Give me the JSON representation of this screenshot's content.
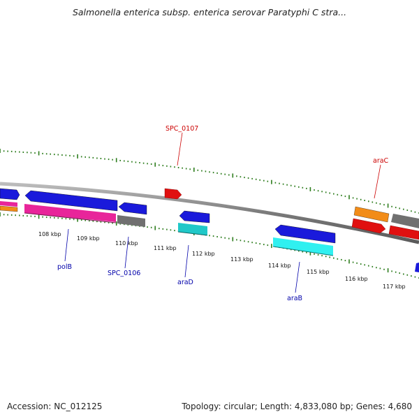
{
  "header": {
    "title": "Salmonella enterica subsp. enterica serovar Paratyphi C stra..."
  },
  "footer": {
    "accession": "Accession: NC_012125",
    "summary": "Topology: circular; Length: 4,833,080 bp; Genes: 4,680"
  },
  "colors": {
    "backbone": "#8c8c8c",
    "tick_major": "#2e7d1e",
    "tick_minor": "#2e7d1e",
    "label_blue": "#0000aa",
    "label_red": "#cc0000"
  },
  "ticks": [
    {
      "label": "108 kbp"
    },
    {
      "label": "109 kbp"
    },
    {
      "label": "110 kbp"
    },
    {
      "label": "111 kbp"
    },
    {
      "label": "112 kbp"
    },
    {
      "label": "113 kbp"
    },
    {
      "label": "114 kbp"
    },
    {
      "label": "115 kbp"
    },
    {
      "label": "116 kbp"
    },
    {
      "label": "117 kbp"
    }
  ],
  "gene_labels": [
    {
      "name": "SPC_0107",
      "color": "#cc0000"
    },
    {
      "name": "araC",
      "color": "#cc0000"
    },
    {
      "name": "polB",
      "color": "#0000aa"
    },
    {
      "name": "SPC_0106",
      "color": "#0000aa"
    },
    {
      "name": "araD",
      "color": "#0000aa"
    },
    {
      "name": "araB",
      "color": "#0000aa"
    }
  ],
  "features": [
    {
      "name": "left-blue-edge",
      "color": "#1a1adb"
    },
    {
      "name": "left-pink-edge",
      "color": "#e8259a"
    },
    {
      "name": "left-orange-edge",
      "color": "#f28c18"
    },
    {
      "name": "polB",
      "color": "#1a1adb"
    },
    {
      "name": "polB-pink",
      "color": "#e8259a"
    },
    {
      "name": "SPC_0106",
      "color": "#1a1adb"
    },
    {
      "name": "SPC_0106-gray",
      "color": "#707070"
    },
    {
      "name": "SPC_0107",
      "color": "#e01010"
    },
    {
      "name": "araD",
      "color": "#1a1adb"
    },
    {
      "name": "araD-cyan",
      "color": "#20c8c8"
    },
    {
      "name": "araB",
      "color": "#1a1adb"
    },
    {
      "name": "araB-cyan",
      "color": "#30f0f0"
    },
    {
      "name": "araC",
      "color": "#f28c18"
    },
    {
      "name": "araC-red",
      "color": "#e01010"
    },
    {
      "name": "right-gray",
      "color": "#707070"
    },
    {
      "name": "right-red",
      "color": "#e01010"
    },
    {
      "name": "far-right-blue",
      "color": "#1a1adb"
    }
  ]
}
